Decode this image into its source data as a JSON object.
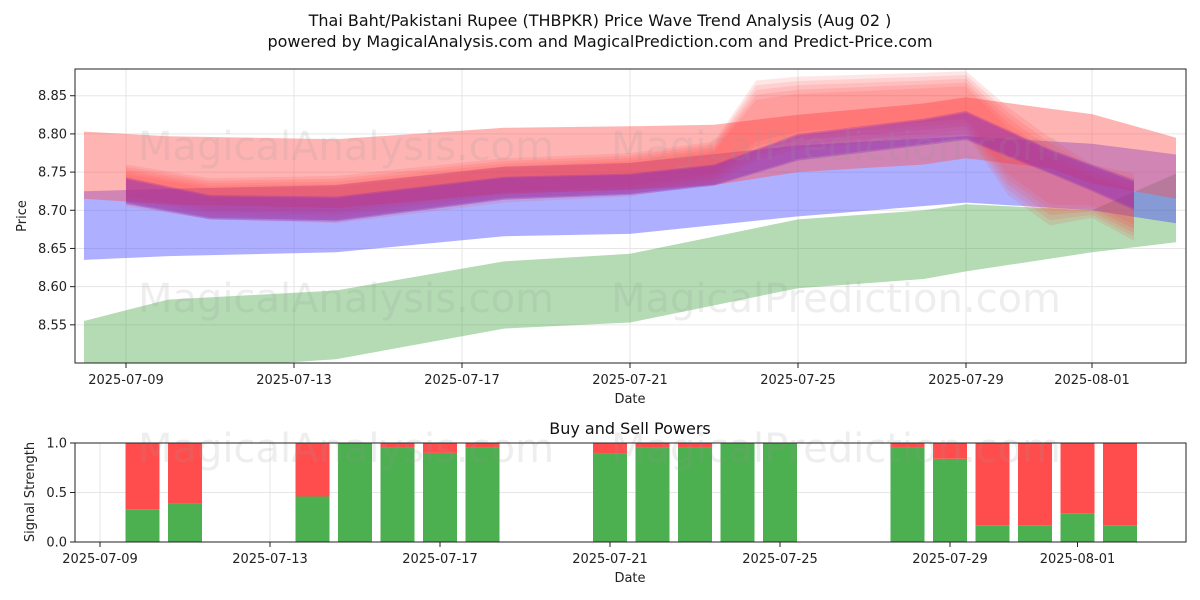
{
  "page": {
    "title_line1": "Thai Baht/Pakistani Rupee (THBPKR) Price Wave Trend Analysis (Aug 02 )",
    "title_line2": "powered by MagicalAnalysis.com and MagicalPrediction.com and Predict-Price.com",
    "watermarks": [
      "MagicalAnalysis.com",
      "MagicalPrediction.com"
    ]
  },
  "chart_data": [
    {
      "type": "area",
      "title": "",
      "xlabel": "Date",
      "ylabel": "Price",
      "ylim": [
        8.5,
        8.885
      ],
      "y_ticks": [
        "8.55",
        "8.60",
        "8.65",
        "8.70",
        "8.75",
        "8.80",
        "8.85"
      ],
      "x_ticks": [
        "2025-07-09",
        "2025-07-13",
        "2025-07-17",
        "2025-07-21",
        "2025-07-25",
        "2025-07-29",
        "2025-08-01"
      ],
      "grid": true,
      "colors": {
        "red_band": "#ff4d4d",
        "blue_band": "#4d4dff",
        "green_band": "#2e9a2e",
        "purple_core": "#8b2db5"
      },
      "series": [
        {
          "color": "green",
          "x": [
            "2025-07-08",
            "2025-07-10",
            "2025-07-14",
            "2025-07-18",
            "2025-07-21",
            "2025-07-25",
            "2025-07-28",
            "2025-07-29",
            "2025-08-01",
            "2025-08-03"
          ],
          "upper": [
            8.555,
            8.583,
            8.595,
            8.633,
            8.643,
            8.688,
            8.7,
            8.708,
            8.7,
            8.748
          ],
          "lower": [
            8.49,
            8.49,
            8.505,
            8.545,
            8.553,
            8.598,
            8.61,
            8.62,
            8.645,
            8.658
          ]
        },
        {
          "color": "blue",
          "x": [
            "2025-07-08",
            "2025-07-10",
            "2025-07-14",
            "2025-07-18",
            "2025-07-21",
            "2025-07-25",
            "2025-07-29",
            "2025-08-01",
            "2025-08-03"
          ],
          "upper": [
            8.725,
            8.728,
            8.733,
            8.757,
            8.762,
            8.785,
            8.797,
            8.787,
            8.773
          ],
          "lower": [
            8.635,
            8.64,
            8.645,
            8.666,
            8.669,
            8.692,
            8.71,
            8.7,
            8.683
          ]
        },
        {
          "color": "red",
          "x": [
            "2025-07-08",
            "2025-07-10",
            "2025-07-14",
            "2025-07-18",
            "2025-07-21",
            "2025-07-23",
            "2025-07-25",
            "2025-07-28",
            "2025-07-29",
            "2025-07-31",
            "2025-08-01",
            "2025-08-03"
          ],
          "upper": [
            8.803,
            8.797,
            8.793,
            8.808,
            8.81,
            8.812,
            8.825,
            8.84,
            8.848,
            8.833,
            8.826,
            8.795
          ],
          "lower": [
            8.715,
            8.708,
            8.703,
            8.722,
            8.727,
            8.733,
            8.75,
            8.76,
            8.768,
            8.755,
            8.735,
            8.715
          ]
        },
        {
          "color": "red-fan",
          "x": [
            "2025-07-09",
            "2025-07-11",
            "2025-07-14",
            "2025-07-18",
            "2025-07-21",
            "2025-07-23",
            "2025-07-24",
            "2025-07-25",
            "2025-07-28",
            "2025-07-29",
            "2025-07-30",
            "2025-07-31",
            "2025-08-01",
            "2025-08-02"
          ],
          "upper": [
            8.76,
            8.742,
            8.745,
            8.768,
            8.775,
            8.79,
            8.87,
            8.875,
            8.88,
            8.882,
            8.835,
            8.795,
            8.76,
            8.748
          ],
          "lower": [
            8.705,
            8.688,
            8.683,
            8.71,
            8.718,
            8.735,
            8.765,
            8.78,
            8.795,
            8.8,
            8.72,
            8.68,
            8.69,
            8.66
          ]
        },
        {
          "color": "purple-core",
          "x": [
            "2025-07-09",
            "2025-07-11",
            "2025-07-14",
            "2025-07-18",
            "2025-07-21",
            "2025-07-23",
            "2025-07-25",
            "2025-07-28",
            "2025-07-29",
            "2025-07-31",
            "2025-08-01",
            "2025-08-02"
          ],
          "upper": [
            8.743,
            8.72,
            8.718,
            8.744,
            8.748,
            8.76,
            8.8,
            8.82,
            8.83,
            8.78,
            8.76,
            8.74
          ],
          "lower": [
            8.708,
            8.688,
            8.685,
            8.714,
            8.72,
            8.732,
            8.765,
            8.785,
            8.792,
            8.748,
            8.725,
            8.7
          ]
        }
      ]
    },
    {
      "type": "bar",
      "title": "Buy and Sell Powers",
      "xlabel": "Date",
      "ylabel": "Signal Strength",
      "ylim": [
        0,
        1.0
      ],
      "y_ticks": [
        "0.0",
        "0.5",
        "1.0"
      ],
      "x_ticks": [
        "2025-07-09",
        "2025-07-13",
        "2025-07-17",
        "2025-07-21",
        "2025-07-25",
        "2025-07-29",
        "2025-08-01"
      ],
      "grid": true,
      "categories": [
        "2025-07-10",
        "2025-07-11",
        "2025-07-14",
        "2025-07-15",
        "2025-07-16",
        "2025-07-17",
        "2025-07-18",
        "2025-07-21",
        "2025-07-22",
        "2025-07-23",
        "2025-07-24",
        "2025-07-25",
        "2025-07-28",
        "2025-07-29",
        "2025-07-30",
        "2025-07-31",
        "2025-08-01",
        "2025-08-02"
      ],
      "series": [
        {
          "color": "#4caf50",
          "values": [
            0.33,
            0.39,
            0.46,
            1.0,
            0.95,
            0.9,
            0.95,
            0.89,
            0.95,
            0.95,
            1.0,
            1.0,
            0.95,
            0.84,
            0.17,
            0.17,
            0.29,
            0.17
          ]
        },
        {
          "color": "#ff4d4d",
          "values": [
            0.67,
            0.61,
            0.54,
            0.0,
            0.05,
            0.1,
            0.05,
            0.11,
            0.05,
            0.05,
            0.0,
            0.0,
            0.05,
            0.16,
            0.83,
            0.83,
            0.71,
            0.83
          ]
        }
      ]
    }
  ]
}
